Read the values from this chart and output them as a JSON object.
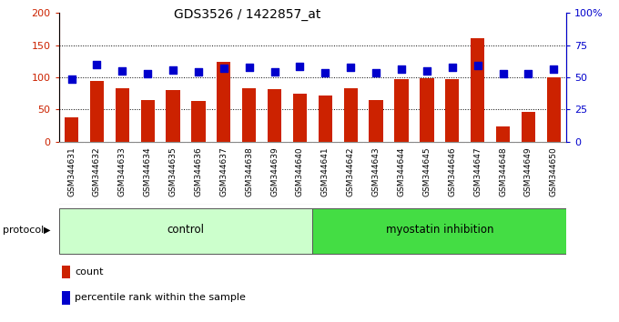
{
  "title": "GDS3526 / 1422857_at",
  "samples": [
    "GSM344631",
    "GSM344632",
    "GSM344633",
    "GSM344634",
    "GSM344635",
    "GSM344636",
    "GSM344637",
    "GSM344638",
    "GSM344639",
    "GSM344640",
    "GSM344641",
    "GSM344642",
    "GSM344643",
    "GSM344644",
    "GSM344645",
    "GSM344646",
    "GSM344647",
    "GSM344648",
    "GSM344649",
    "GSM344650"
  ],
  "counts": [
    38,
    95,
    83,
    65,
    80,
    63,
    124,
    83,
    81,
    74,
    72,
    83,
    65,
    97,
    98,
    97,
    160,
    24,
    46,
    100
  ],
  "percentiles_left": [
    97,
    120,
    110,
    105,
    111,
    109,
    114,
    115,
    109,
    117,
    107,
    115,
    107,
    112,
    110,
    115,
    119,
    105,
    105,
    113
  ],
  "control_count": 10,
  "bar_color": "#cc2200",
  "dot_color": "#0000cc",
  "grid_values": [
    50,
    100,
    150
  ],
  "left_ylim": [
    0,
    200
  ],
  "right_ylim": [
    0,
    100
  ],
  "left_yticks": [
    0,
    50,
    100,
    150,
    200
  ],
  "right_yticks": [
    0,
    25,
    50,
    75,
    100
  ],
  "left_yticklabels": [
    "0",
    "50",
    "100",
    "150",
    "200"
  ],
  "right_yticklabels": [
    "0",
    "25",
    "50",
    "75",
    "100%"
  ],
  "control_bg": "#ccffcc",
  "myostatin_bg": "#44dd44",
  "group_labels": [
    "control",
    "myostatin inhibition"
  ],
  "protocol_label": "protocol",
  "legend_count_label": "count",
  "legend_pct_label": "percentile rank within the sample",
  "title_fontsize": 10,
  "axis_fontsize": 8,
  "xtick_fontsize": 6.5,
  "dot_size": 30,
  "bar_width": 0.55,
  "xticklabel_bg": "#cccccc",
  "xticklabel_border": "#888888"
}
